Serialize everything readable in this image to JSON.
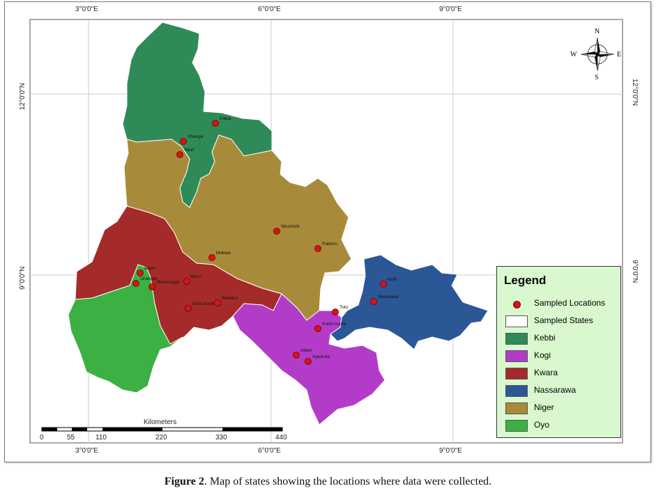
{
  "figure": {
    "caption_bold": "Figure 2",
    "caption_rest": ". Map of states showing the locations where data were collected."
  },
  "coordinates": {
    "top": [
      "3°0'0\"E",
      "6°0'0\"E",
      "9°0'0\"E"
    ],
    "bottom": [
      "3°0'0\"E",
      "6°0'0\"E",
      "9°0'0\"E"
    ],
    "left": [
      "12°0'0\"N",
      "9°0'0\"N"
    ],
    "right": [
      "12°0'0\"N",
      "9°0'0\"N"
    ]
  },
  "compass": {
    "n": "N",
    "s": "S",
    "e": "E",
    "w": "W"
  },
  "scale_bar": {
    "title": "Kilometers",
    "ticks": [
      "0",
      "55",
      "110",
      "220",
      "330",
      "440"
    ]
  },
  "legend": {
    "title": "Legend",
    "items": [
      {
        "label": "Sampled Locations",
        "kind": "point",
        "color": "#d81414"
      },
      {
        "label": "Sampled States",
        "kind": "outline",
        "color": "#ffffff"
      },
      {
        "label": "Kebbi",
        "kind": "fill",
        "color": "#2e8b57"
      },
      {
        "label": "Kogi",
        "kind": "fill",
        "color": "#b23cc8"
      },
      {
        "label": "Kwara",
        "kind": "fill",
        "color": "#a52a2a"
      },
      {
        "label": "Nassarawa",
        "kind": "fill",
        "color": "#2b5797"
      },
      {
        "label": "Niger",
        "kind": "fill",
        "color": "#a88b3a"
      },
      {
        "label": "Oyo",
        "kind": "fill",
        "color": "#3cb043"
      }
    ]
  },
  "states": {
    "kebbi": {
      "name": "Kebbi",
      "color": "#2e8b57"
    },
    "niger": {
      "name": "Niger",
      "color": "#a88b3a"
    },
    "kwara": {
      "name": "Kwara",
      "color": "#a52a2a"
    },
    "oyo": {
      "name": "Oyo",
      "color": "#3cb043"
    },
    "kogi": {
      "name": "Kogi",
      "color": "#b23cc8"
    },
    "nassarawa": {
      "name": "Nassarawa",
      "color": "#2b5797"
    }
  },
  "locations": [
    "Pakia",
    "Shanga",
    "Yauri",
    "Wushishi",
    "Paikoro",
    "Mokwa",
    "Ikapo",
    "Oraluyle",
    "Olorunsogo",
    "Moro",
    "Ifelodun",
    "Ilorin south",
    "Toto",
    "Koton Karfe",
    "Adavi",
    "Ajaokuta",
    "Keffi",
    "Nasarawa"
  ]
}
